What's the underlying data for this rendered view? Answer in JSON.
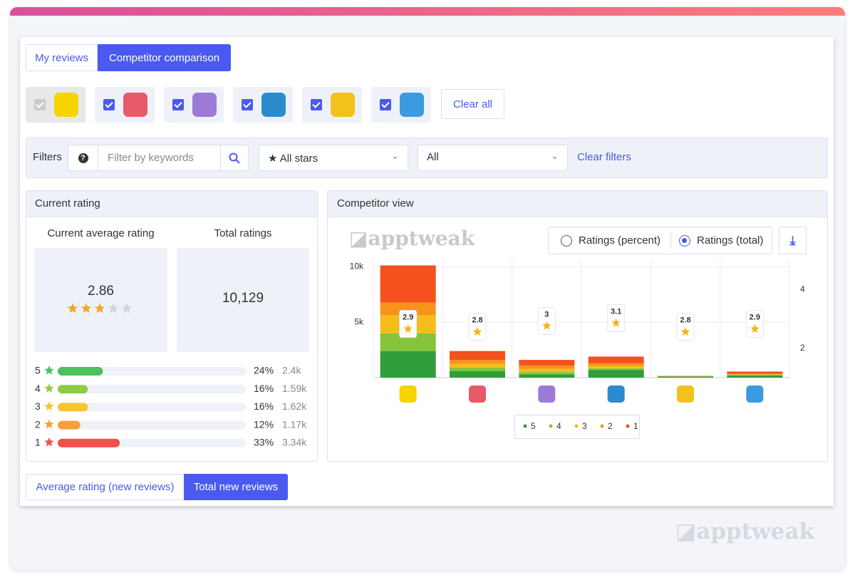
{
  "tabs": [
    "My reviews",
    "Competitor comparison"
  ],
  "clear_all": "Clear all",
  "filters": {
    "label": "Filters",
    "placeholder": "Filter by keywords",
    "stars": "All stars",
    "scope": "All",
    "clear": "Clear filters"
  },
  "current_rating": {
    "title": "Current rating",
    "average_label": "Current average rating",
    "total_label": "Total ratings",
    "average": 2.86,
    "total": "10,129",
    "rows": [
      {
        "star": 5,
        "percent": 24,
        "percent_label": "24%",
        "count": "2.4k",
        "color": "#4cc15d"
      },
      {
        "star": 4,
        "percent": 16,
        "percent_label": "16%",
        "count": "1.59k",
        "color": "#8fcc45"
      },
      {
        "star": 3,
        "percent": 16,
        "percent_label": "16%",
        "count": "1.62k",
        "color": "#f7c531"
      },
      {
        "star": 2,
        "percent": 12,
        "percent_label": "12%",
        "count": "1.17k",
        "color": "#f5a03b"
      },
      {
        "star": 1,
        "percent": 33,
        "percent_label": "33%",
        "count": "3.34k",
        "color": "#f0514a"
      }
    ]
  },
  "competitor_view": {
    "radio": [
      "Ratings (percent)",
      "Ratings (total)"
    ],
    "watermark": "apptweak"
  },
  "chart_data": {
    "type": "bar",
    "stacked": true,
    "title": "Competitor view",
    "categories": [
      null,
      null,
      null,
      null,
      null,
      null
    ],
    "series": [
      {
        "name": "5",
        "color": "#2f9e3a",
        "values": [
          2400,
          600,
          300,
          700,
          100,
          200
        ]
      },
      {
        "name": "4",
        "color": "#86c43b",
        "values": [
          1590,
          300,
          200,
          150,
          20,
          50
        ]
      },
      {
        "name": "3",
        "color": "#f5bd1a",
        "values": [
          1620,
          350,
          300,
          200,
          10,
          50
        ]
      },
      {
        "name": "2",
        "color": "#f7941d",
        "values": [
          1170,
          350,
          300,
          250,
          10,
          50
        ]
      },
      {
        "name": "1",
        "color": "#f4511e",
        "values": [
          3340,
          800,
          500,
          600,
          20,
          200
        ]
      }
    ],
    "average_ratings": {
      "axis": "y2",
      "values": [
        2.9,
        2.8,
        3,
        3.1,
        2.8,
        2.9
      ]
    },
    "ylim": [
      0,
      10600
    ],
    "yticks": [
      {
        "value": 5000,
        "label": "5k"
      },
      {
        "value": 10000,
        "label": "10k"
      }
    ],
    "y2lim": [
      1,
      5
    ],
    "y2ticks": [
      2,
      4
    ],
    "grid": true,
    "legend": "bottom"
  },
  "bottom_tabs": [
    "Average rating (new reviews)",
    "Total new reviews"
  ],
  "watermark": "apptweak"
}
